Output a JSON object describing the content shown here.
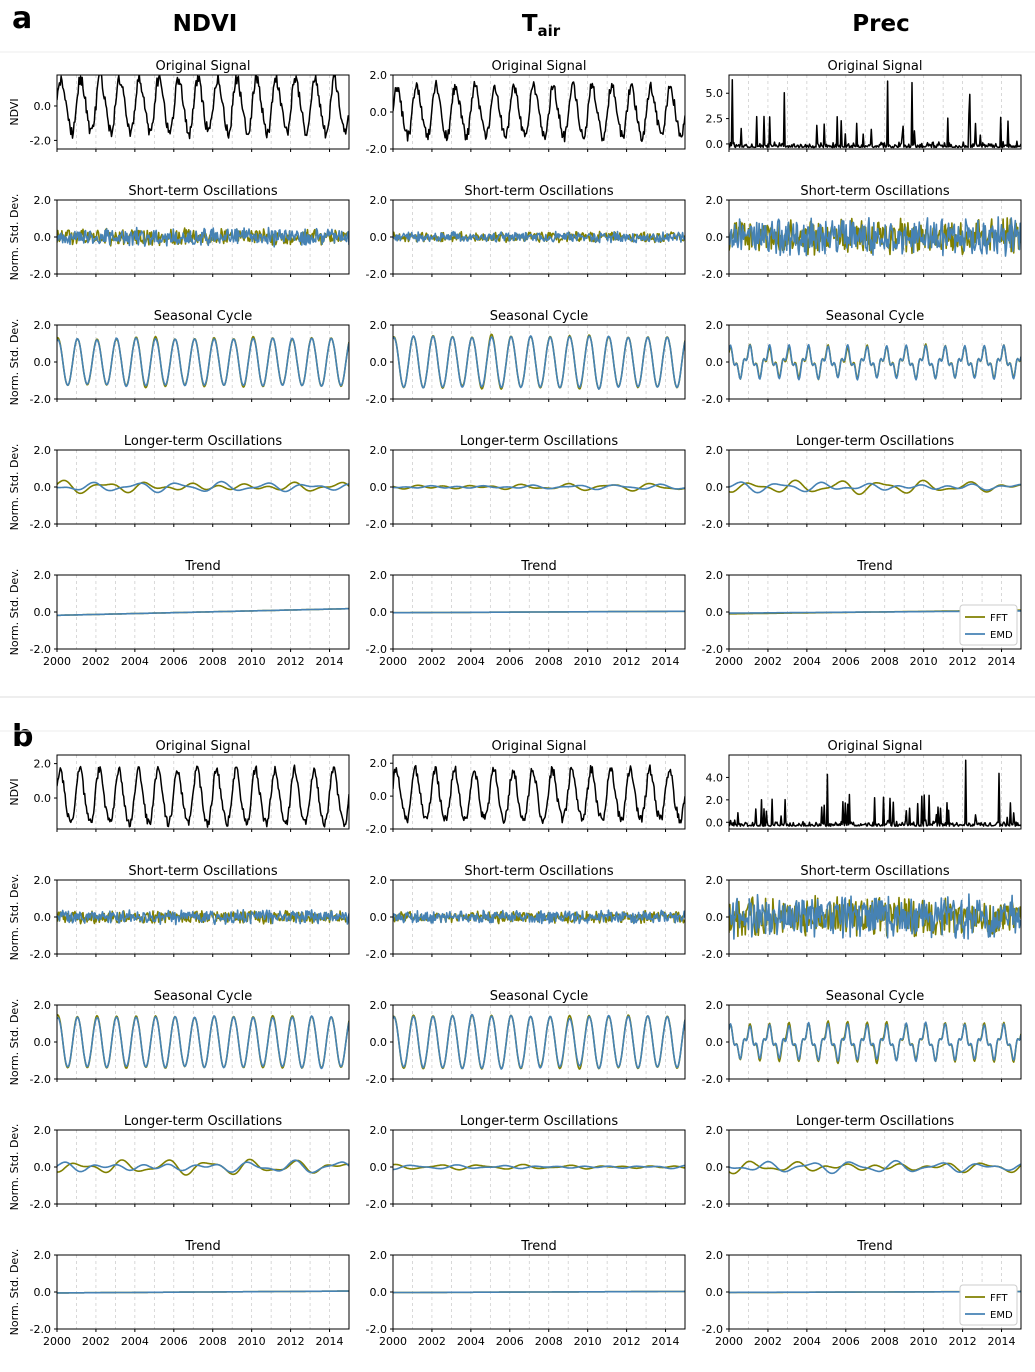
{
  "figure": {
    "panel_labels": [
      "a",
      "b"
    ],
    "columns": [
      {
        "label": "NDVI",
        "sub": ""
      },
      {
        "label": "T",
        "sub": "air"
      },
      {
        "label": "Prec",
        "sub": ""
      }
    ],
    "row_titles": [
      "Original Signal",
      "Short-term Oscillations",
      "Seasonal Cycle",
      "Longer-term Oscillations",
      "Trend"
    ],
    "ylabel_original": "NDVI",
    "ylabel_component": "Norm. Std. Dev.",
    "x_ticks": [
      "2000",
      "2002",
      "2004",
      "2006",
      "2008",
      "2010",
      "2012",
      "2014"
    ],
    "legend": [
      {
        "name": "FFT",
        "color": "#808000"
      },
      {
        "name": "EMD",
        "color": "#4682b4"
      }
    ],
    "colors": {
      "original": "#000000",
      "fft": "#808000",
      "emd": "#4682b4",
      "grid": "#c8c8c8"
    }
  },
  "chart_data": [
    {
      "type": "line",
      "panel": "a",
      "column": "NDVI",
      "row": "Original Signal",
      "xlim": [
        2000,
        2015
      ],
      "ylim": [
        -2.5,
        1.8
      ],
      "yticks": [
        -2.0,
        0.0
      ],
      "series": [
        {
          "values_shape": "seasonal",
          "amplitude": 1.55,
          "noise": 0.35
        }
      ]
    },
    {
      "type": "line",
      "panel": "a",
      "column": "Tair",
      "row": "Original Signal",
      "xlim": [
        2000,
        2015
      ],
      "ylim": [
        -2.0,
        2.0
      ],
      "yticks": [
        -2.0,
        0.0,
        2.0
      ],
      "series": [
        {
          "values_shape": "seasonal",
          "amplitude": 1.35,
          "noise": 0.3
        }
      ]
    },
    {
      "type": "line",
      "panel": "a",
      "column": "Prec",
      "row": "Original Signal",
      "xlim": [
        2000,
        2015
      ],
      "ylim": [
        -0.5,
        6.8
      ],
      "yticks": [
        0.0,
        2.5,
        5.0
      ],
      "series": [
        {
          "values_shape": "spiky",
          "max": 6.5
        }
      ]
    },
    {
      "type": "line",
      "panel": "a",
      "column": "NDVI",
      "row": "Short-term Oscillations",
      "xlim": [
        2000,
        2015
      ],
      "ylim": [
        -2.0,
        2.0
      ],
      "yticks": [
        -2.0,
        0.0,
        2.0
      ],
      "series": [
        {
          "name": "FFT",
          "amplitude": 0.35
        },
        {
          "name": "EMD",
          "amplitude": 0.38
        }
      ]
    },
    {
      "type": "line",
      "panel": "a",
      "column": "Tair",
      "row": "Short-term Oscillations",
      "xlim": [
        2000,
        2015
      ],
      "ylim": [
        -2.0,
        2.0
      ],
      "yticks": [
        -2.0,
        0.0,
        2.0
      ],
      "series": [
        {
          "name": "FFT",
          "amplitude": 0.22
        },
        {
          "name": "EMD",
          "amplitude": 0.24
        }
      ]
    },
    {
      "type": "line",
      "panel": "a",
      "column": "Prec",
      "row": "Short-term Oscillations",
      "xlim": [
        2000,
        2015
      ],
      "ylim": [
        -2.0,
        2.0
      ],
      "yticks": [
        -2.0,
        0.0,
        2.0
      ],
      "series": [
        {
          "name": "FFT",
          "amplitude": 0.75
        },
        {
          "name": "EMD",
          "amplitude": 0.8
        }
      ]
    },
    {
      "type": "line",
      "panel": "a",
      "column": "NDVI",
      "row": "Seasonal Cycle",
      "xlim": [
        2000,
        2015
      ],
      "ylim": [
        -2.0,
        2.0
      ],
      "yticks": [
        -2.0,
        0.0,
        2.0
      ],
      "series": [
        {
          "name": "FFT",
          "amplitude": 1.3
        },
        {
          "name": "EMD",
          "amplitude": 1.25
        }
      ]
    },
    {
      "type": "line",
      "panel": "a",
      "column": "Tair",
      "row": "Seasonal Cycle",
      "xlim": [
        2000,
        2015
      ],
      "ylim": [
        -2.0,
        2.0
      ],
      "yticks": [
        -2.0,
        0.0,
        2.0
      ],
      "series": [
        {
          "name": "FFT",
          "amplitude": 1.4
        },
        {
          "name": "EMD",
          "amplitude": 1.38
        }
      ]
    },
    {
      "type": "line",
      "panel": "a",
      "column": "Prec",
      "row": "Seasonal Cycle",
      "xlim": [
        2000,
        2015
      ],
      "ylim": [
        -2.0,
        2.0
      ],
      "yticks": [
        -2.0,
        0.0,
        2.0
      ],
      "series": [
        {
          "name": "FFT",
          "amplitude": 0.6
        },
        {
          "name": "EMD",
          "amplitude": 0.6
        }
      ]
    },
    {
      "type": "line",
      "panel": "a",
      "column": "NDVI",
      "row": "Longer-term Oscillations",
      "xlim": [
        2000,
        2015
      ],
      "ylim": [
        -2.0,
        2.0
      ],
      "yticks": [
        -2.0,
        0.0,
        2.0
      ],
      "series": [
        {
          "name": "FFT",
          "amplitude": 0.4
        },
        {
          "name": "EMD",
          "amplitude": 0.3
        }
      ]
    },
    {
      "type": "line",
      "panel": "a",
      "column": "Tair",
      "row": "Longer-term Oscillations",
      "xlim": [
        2000,
        2015
      ],
      "ylim": [
        -2.0,
        2.0
      ],
      "yticks": [
        -2.0,
        0.0,
        2.0
      ],
      "series": [
        {
          "name": "FFT",
          "amplitude": 0.22
        },
        {
          "name": "EMD",
          "amplitude": 0.15
        }
      ]
    },
    {
      "type": "line",
      "panel": "a",
      "column": "Prec",
      "row": "Longer-term Oscillations",
      "xlim": [
        2000,
        2015
      ],
      "ylim": [
        -2.0,
        2.0
      ],
      "yticks": [
        -2.0,
        0.0,
        2.0
      ],
      "series": [
        {
          "name": "FFT",
          "amplitude": 0.4
        },
        {
          "name": "EMD",
          "amplitude": 0.32
        }
      ]
    },
    {
      "type": "line",
      "panel": "a",
      "column": "NDVI",
      "row": "Trend",
      "xlim": [
        2000,
        2015
      ],
      "ylim": [
        -2.0,
        2.0
      ],
      "yticks": [
        -2.0,
        0.0,
        2.0
      ],
      "series": [
        {
          "name": "FFT",
          "start": -0.18,
          "end": 0.18
        },
        {
          "name": "EMD",
          "start": -0.18,
          "end": 0.18
        }
      ]
    },
    {
      "type": "line",
      "panel": "a",
      "column": "Tair",
      "row": "Trend",
      "xlim": [
        2000,
        2015
      ],
      "ylim": [
        -2.0,
        2.0
      ],
      "yticks": [
        -2.0,
        0.0,
        2.0
      ],
      "series": [
        {
          "name": "FFT",
          "start": -0.04,
          "end": 0.04
        },
        {
          "name": "EMD",
          "start": -0.04,
          "end": 0.04
        }
      ]
    },
    {
      "type": "line",
      "panel": "a",
      "column": "Prec",
      "row": "Trend",
      "xlim": [
        2000,
        2015
      ],
      "ylim": [
        -2.0,
        2.0
      ],
      "yticks": [
        -2.0,
        0.0,
        2.0
      ],
      "series": [
        {
          "name": "FFT",
          "start": -0.1,
          "end": 0.1
        },
        {
          "name": "EMD",
          "start": -0.06,
          "end": 0.06
        }
      ],
      "legend": "lower-right"
    },
    {
      "type": "line",
      "panel": "b",
      "column": "NDVI",
      "row": "Original Signal",
      "xlim": [
        2000,
        2015
      ],
      "ylim": [
        -1.8,
        2.5
      ],
      "yticks": [
        0.0,
        2.0
      ],
      "series": [
        {
          "values_shape": "seasonal",
          "amplitude": 1.55,
          "noise": 0.25
        }
      ]
    },
    {
      "type": "line",
      "panel": "b",
      "column": "Tair",
      "row": "Original Signal",
      "xlim": [
        2000,
        2015
      ],
      "ylim": [
        -2.0,
        2.5
      ],
      "yticks": [
        -2.0,
        0.0,
        2.0
      ],
      "series": [
        {
          "values_shape": "seasonal",
          "amplitude": 1.5,
          "noise": 0.3
        }
      ]
    },
    {
      "type": "line",
      "panel": "b",
      "column": "Prec",
      "row": "Original Signal",
      "xlim": [
        2000,
        2015
      ],
      "ylim": [
        -0.6,
        6.0
      ],
      "yticks": [
        0.0,
        2.0,
        4.0
      ],
      "series": [
        {
          "values_shape": "spiky",
          "max": 5.6
        }
      ]
    },
    {
      "type": "line",
      "panel": "b",
      "column": "NDVI",
      "row": "Short-term Oscillations",
      "xlim": [
        2000,
        2015
      ],
      "ylim": [
        -2.0,
        2.0
      ],
      "yticks": [
        -2.0,
        0.0,
        2.0
      ],
      "series": [
        {
          "name": "FFT",
          "amplitude": 0.28
        },
        {
          "name": "EMD",
          "amplitude": 0.3
        }
      ]
    },
    {
      "type": "line",
      "panel": "b",
      "column": "Tair",
      "row": "Short-term Oscillations",
      "xlim": [
        2000,
        2015
      ],
      "ylim": [
        -2.0,
        2.0
      ],
      "yticks": [
        -2.0,
        0.0,
        2.0
      ],
      "series": [
        {
          "name": "FFT",
          "amplitude": 0.26
        },
        {
          "name": "EMD",
          "amplitude": 0.28
        }
      ]
    },
    {
      "type": "line",
      "panel": "b",
      "column": "Prec",
      "row": "Short-term Oscillations",
      "xlim": [
        2000,
        2015
      ],
      "ylim": [
        -2.0,
        2.0
      ],
      "yticks": [
        -2.0,
        0.0,
        2.0
      ],
      "series": [
        {
          "name": "FFT",
          "amplitude": 0.85
        },
        {
          "name": "EMD",
          "amplitude": 0.9
        }
      ]
    },
    {
      "type": "line",
      "panel": "b",
      "column": "NDVI",
      "row": "Seasonal Cycle",
      "xlim": [
        2000,
        2015
      ],
      "ylim": [
        -2.0,
        2.0
      ],
      "yticks": [
        -2.0,
        0.0,
        2.0
      ],
      "series": [
        {
          "name": "FFT",
          "amplitude": 1.4
        },
        {
          "name": "EMD",
          "amplitude": 1.35
        }
      ]
    },
    {
      "type": "line",
      "panel": "b",
      "column": "Tair",
      "row": "Seasonal Cycle",
      "xlim": [
        2000,
        2015
      ],
      "ylim": [
        -2.0,
        2.0
      ],
      "yticks": [
        -2.0,
        0.0,
        2.0
      ],
      "series": [
        {
          "name": "FFT",
          "amplitude": 1.42
        },
        {
          "name": "EMD",
          "amplitude": 1.4
        }
      ]
    },
    {
      "type": "line",
      "panel": "b",
      "column": "Prec",
      "row": "Seasonal Cycle",
      "xlim": [
        2000,
        2015
      ],
      "ylim": [
        -2.0,
        2.0
      ],
      "yticks": [
        -2.0,
        0.0,
        2.0
      ],
      "series": [
        {
          "name": "FFT",
          "amplitude": 0.75
        },
        {
          "name": "EMD",
          "amplitude": 0.7
        }
      ]
    },
    {
      "type": "line",
      "panel": "b",
      "column": "NDVI",
      "row": "Longer-term Oscillations",
      "xlim": [
        2000,
        2015
      ],
      "ylim": [
        -2.0,
        2.0
      ],
      "yticks": [
        -2.0,
        0.0,
        2.0
      ],
      "series": [
        {
          "name": "FFT",
          "amplitude": 0.45
        },
        {
          "name": "EMD",
          "amplitude": 0.4
        }
      ]
    },
    {
      "type": "line",
      "panel": "b",
      "column": "Tair",
      "row": "Longer-term Oscillations",
      "xlim": [
        2000,
        2015
      ],
      "ylim": [
        -2.0,
        2.0
      ],
      "yticks": [
        -2.0,
        0.0,
        2.0
      ],
      "series": [
        {
          "name": "FFT",
          "amplitude": 0.15
        },
        {
          "name": "EMD",
          "amplitude": 0.13
        }
      ]
    },
    {
      "type": "line",
      "panel": "b",
      "column": "Prec",
      "row": "Longer-term Oscillations",
      "xlim": [
        2000,
        2015
      ],
      "ylim": [
        -2.0,
        2.0
      ],
      "yticks": [
        -2.0,
        0.0,
        2.0
      ],
      "series": [
        {
          "name": "FFT",
          "amplitude": 0.4
        },
        {
          "name": "EMD",
          "amplitude": 0.35
        }
      ]
    },
    {
      "type": "line",
      "panel": "b",
      "column": "NDVI",
      "row": "Trend",
      "xlim": [
        2000,
        2015
      ],
      "ylim": [
        -2.0,
        2.0
      ],
      "yticks": [
        -2.0,
        0.0,
        2.0
      ],
      "series": [
        {
          "name": "FFT",
          "start": -0.05,
          "end": 0.05
        },
        {
          "name": "EMD",
          "start": -0.05,
          "end": 0.05
        }
      ]
    },
    {
      "type": "line",
      "panel": "b",
      "column": "Tair",
      "row": "Trend",
      "xlim": [
        2000,
        2015
      ],
      "ylim": [
        -2.0,
        2.0
      ],
      "yticks": [
        -2.0,
        0.0,
        2.0
      ],
      "series": [
        {
          "name": "FFT",
          "start": -0.03,
          "end": 0.03
        },
        {
          "name": "EMD",
          "start": -0.03,
          "end": 0.03
        }
      ]
    },
    {
      "type": "line",
      "panel": "b",
      "column": "Prec",
      "row": "Trend",
      "xlim": [
        2000,
        2015
      ],
      "ylim": [
        -2.0,
        2.0
      ],
      "yticks": [
        -2.0,
        0.0,
        2.0
      ],
      "series": [
        {
          "name": "FFT",
          "start": -0.03,
          "end": 0.03
        },
        {
          "name": "EMD",
          "start": -0.02,
          "end": 0.02
        }
      ],
      "legend": "lower-right"
    }
  ]
}
